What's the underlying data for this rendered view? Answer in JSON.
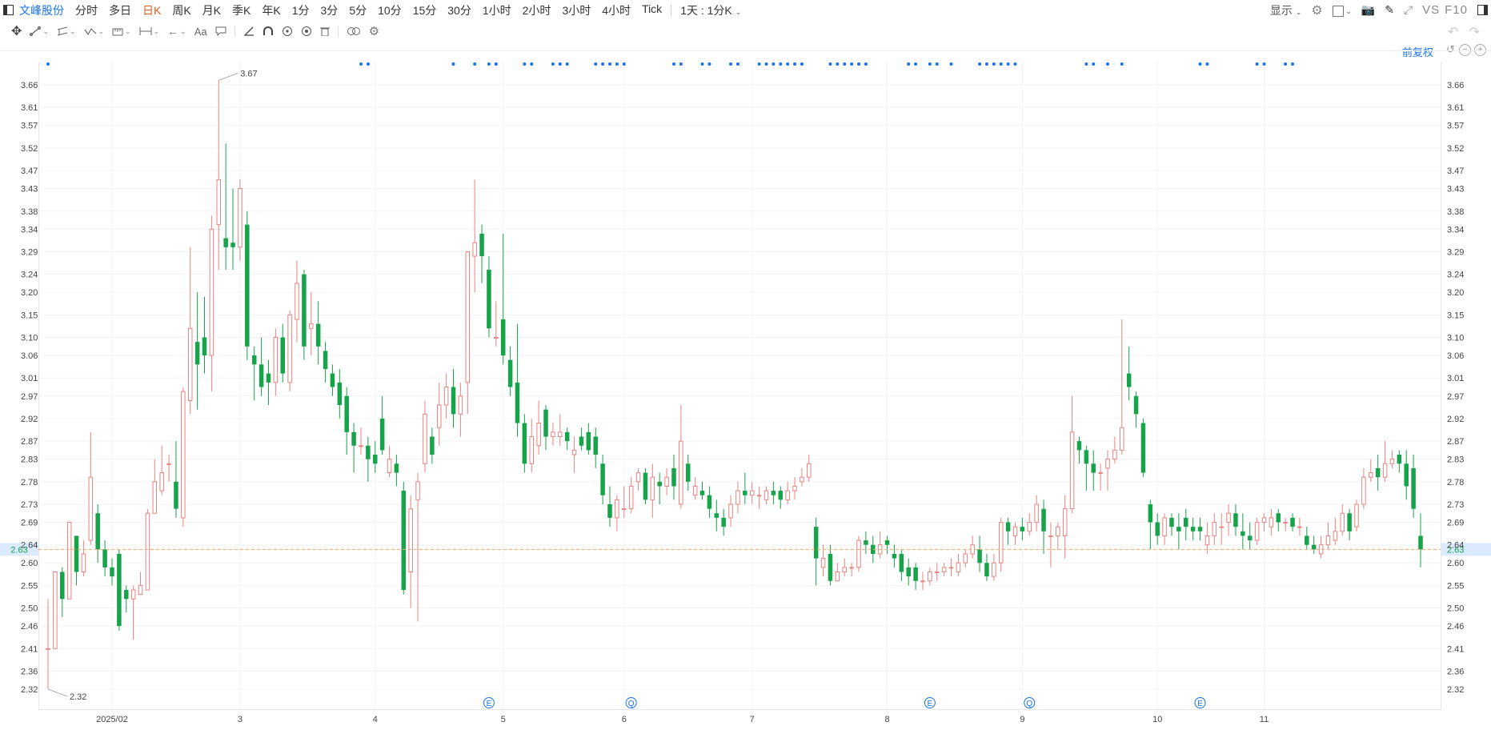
{
  "toolbar": {
    "stock_name": "文峰股份",
    "periods": [
      "分时",
      "多日",
      "日K",
      "周K",
      "月K",
      "季K",
      "年K",
      "1分",
      "3分",
      "5分",
      "10分",
      "15分",
      "30分",
      "1小时",
      "2小时",
      "3小时",
      "4小时",
      "Tick"
    ],
    "active_period": "日K",
    "interval_label": "1天 : 1分K",
    "display_label": "显示",
    "vs_label": "VS",
    "f10_label": "F10"
  },
  "adjust_label": "前复权",
  "icons": [
    "sidebar-toggle-icon",
    "settings-icon",
    "layout-icon",
    "camera-icon",
    "pencil-icon",
    "fullscreen-icon",
    "panel-icon",
    "move-icon",
    "line-tool-icon",
    "channel-icon",
    "pattern-icon",
    "measure-icon",
    "range-icon",
    "arrow-icon",
    "text-icon",
    "comment-icon",
    "angle-icon",
    "magnet-icon",
    "eye-icon",
    "target-icon",
    "trash-icon",
    "link-icon",
    "gear-icon",
    "undo-icon",
    "redo-icon"
  ],
  "colors": {
    "up": "#e8837f",
    "down": "#16a34a",
    "accent": "#1a73e8",
    "active": "#f05a22",
    "current_line": "#f5a86b"
  },
  "chart_data": {
    "type": "candlestick",
    "y_ticks": [
      "2.32",
      "2.36",
      "2.41",
      "2.46",
      "2.50",
      "2.55",
      "2.60",
      "2.64",
      "2.69",
      "2.73",
      "2.78",
      "2.83",
      "2.87",
      "2.92",
      "2.97",
      "3.01",
      "3.06",
      "3.10",
      "3.15",
      "3.20",
      "3.24",
      "3.29",
      "3.34",
      "3.38",
      "3.43",
      "3.47",
      "3.52",
      "3.57",
      "3.61",
      "3.66"
    ],
    "x_labels": [
      "2025/02",
      "3",
      "4",
      "5",
      "6",
      "7",
      "8",
      "9",
      "10",
      "11"
    ],
    "ylim": [
      2.28,
      3.69
    ],
    "current_price": "2.63",
    "max_label": "3.67",
    "min_label": "2.32",
    "event_markers": [
      {
        "label": "E",
        "index": 62
      },
      {
        "label": "Q",
        "index": 82
      },
      {
        "label": "E",
        "index": 124
      },
      {
        "label": "Q",
        "index": 138
      },
      {
        "label": "E",
        "index": 162
      }
    ],
    "dot_indices": [
      0,
      44,
      45,
      57,
      60,
      62,
      63,
      67,
      68,
      71,
      72,
      73,
      77,
      78,
      79,
      80,
      81,
      88,
      89,
      92,
      93,
      96,
      97,
      100,
      101,
      102,
      103,
      104,
      105,
      106,
      110,
      111,
      112,
      113,
      114,
      115,
      121,
      122,
      124,
      125,
      127,
      131,
      132,
      133,
      134,
      135,
      136,
      146,
      147,
      149,
      151,
      162,
      163,
      170,
      171,
      174,
      175
    ],
    "month_starts": {
      "2025/02": 9,
      "3": 27,
      "4": 46,
      "5": 64,
      "6": 81,
      "7": 99,
      "8": 118,
      "9": 137,
      "10": 156,
      "11": 171
    },
    "candles": [
      [
        2.41,
        2.41,
        2.32,
        2.52
      ],
      [
        2.41,
        2.58,
        2.41,
        2.58
      ],
      [
        2.58,
        2.52,
        2.48,
        2.59
      ],
      [
        2.52,
        2.69,
        2.52,
        2.69
      ],
      [
        2.66,
        2.58,
        2.55,
        2.66
      ],
      [
        2.58,
        2.62,
        2.57,
        2.65
      ],
      [
        2.65,
        2.79,
        2.64,
        2.89
      ],
      [
        2.71,
        2.63,
        2.6,
        2.73
      ],
      [
        2.63,
        2.59,
        2.57,
        2.65
      ],
      [
        2.59,
        2.57,
        2.55,
        2.61
      ],
      [
        2.62,
        2.46,
        2.45,
        2.63
      ],
      [
        2.54,
        2.52,
        2.49,
        2.55
      ],
      [
        2.52,
        2.54,
        2.43,
        2.55
      ],
      [
        2.53,
        2.55,
        2.53,
        2.58
      ],
      [
        2.54,
        2.71,
        2.54,
        2.72
      ],
      [
        2.71,
        2.78,
        2.71,
        2.83
      ],
      [
        2.76,
        2.8,
        2.75,
        2.86
      ],
      [
        2.82,
        2.82,
        2.78,
        2.84
      ],
      [
        2.78,
        2.72,
        2.7,
        2.87
      ],
      [
        2.7,
        2.98,
        2.68,
        2.99
      ],
      [
        2.96,
        3.12,
        2.93,
        3.3
      ],
      [
        3.09,
        3.04,
        2.94,
        3.2
      ],
      [
        3.1,
        3.06,
        3.02,
        3.19
      ],
      [
        3.06,
        3.34,
        2.98,
        3.37
      ],
      [
        3.35,
        3.45,
        3.25,
        3.67
      ],
      [
        3.32,
        3.3,
        3.25,
        3.53
      ],
      [
        3.31,
        3.3,
        3.25,
        3.43
      ],
      [
        3.3,
        3.43,
        3.27,
        3.45
      ],
      [
        3.35,
        3.08,
        3.05,
        3.38
      ],
      [
        3.06,
        3.04,
        2.96,
        3.08
      ],
      [
        3.04,
        2.99,
        2.97,
        3.1
      ],
      [
        3.02,
        3.0,
        2.95,
        3.05
      ],
      [
        3.0,
        3.1,
        2.97,
        3.12
      ],
      [
        3.1,
        3.02,
        3.0,
        3.13
      ],
      [
        3.0,
        3.15,
        2.98,
        3.16
      ],
      [
        3.14,
        3.22,
        3.09,
        3.27
      ],
      [
        3.24,
        3.08,
        3.05,
        3.25
      ],
      [
        3.12,
        3.13,
        3.06,
        3.2
      ],
      [
        3.13,
        3.08,
        3.04,
        3.18
      ],
      [
        3.07,
        3.03,
        3.0,
        3.09
      ],
      [
        3.02,
        2.99,
        2.97,
        3.04
      ],
      [
        3.0,
        2.95,
        2.92,
        3.03
      ],
      [
        2.97,
        2.89,
        2.84,
        2.99
      ],
      [
        2.89,
        2.86,
        2.8,
        2.91
      ],
      [
        2.86,
        2.86,
        2.84,
        2.9
      ],
      [
        2.86,
        2.83,
        2.78,
        2.88
      ],
      [
        2.84,
        2.82,
        2.8,
        2.87
      ],
      [
        2.92,
        2.85,
        2.84,
        2.97
      ],
      [
        2.8,
        2.83,
        2.79,
        2.86
      ],
      [
        2.82,
        2.8,
        2.77,
        2.84
      ],
      [
        2.76,
        2.54,
        2.53,
        2.78
      ],
      [
        2.58,
        2.72,
        2.5,
        2.75
      ],
      [
        2.74,
        2.78,
        2.47,
        2.8
      ],
      [
        2.82,
        2.93,
        2.8,
        2.96
      ],
      [
        2.88,
        2.84,
        2.82,
        2.9
      ],
      [
        2.9,
        2.95,
        2.86,
        3.0
      ],
      [
        2.95,
        2.99,
        2.92,
        3.02
      ],
      [
        2.99,
        2.93,
        2.9,
        3.03
      ],
      [
        2.93,
        2.97,
        2.88,
        3.0
      ],
      [
        3.0,
        3.29,
        2.93,
        3.29
      ],
      [
        3.28,
        3.31,
        3.2,
        3.45
      ],
      [
        3.33,
        3.28,
        3.22,
        3.35
      ],
      [
        3.25,
        3.12,
        3.1,
        3.28
      ],
      [
        3.1,
        3.1,
        3.08,
        3.18
      ],
      [
        3.14,
        3.06,
        3.04,
        3.33
      ],
      [
        3.05,
        2.99,
        2.97,
        3.08
      ],
      [
        3.0,
        2.91,
        2.88,
        3.13
      ],
      [
        2.91,
        2.82,
        2.8,
        2.93
      ],
      [
        2.82,
        2.88,
        2.8,
        2.92
      ],
      [
        2.86,
        2.91,
        2.84,
        2.96
      ],
      [
        2.94,
        2.88,
        2.85,
        2.95
      ],
      [
        2.88,
        2.89,
        2.86,
        2.91
      ],
      [
        2.88,
        2.89,
        2.86,
        2.93
      ],
      [
        2.89,
        2.87,
        2.85,
        2.9
      ],
      [
        2.84,
        2.85,
        2.8,
        2.88
      ],
      [
        2.88,
        2.86,
        2.85,
        2.9
      ],
      [
        2.89,
        2.85,
        2.84,
        2.91
      ],
      [
        2.88,
        2.84,
        2.81,
        2.9
      ],
      [
        2.82,
        2.75,
        2.73,
        2.84
      ],
      [
        2.73,
        2.7,
        2.68,
        2.77
      ],
      [
        2.7,
        2.74,
        2.67,
        2.75
      ],
      [
        2.72,
        2.72,
        2.7,
        2.77
      ],
      [
        2.72,
        2.77,
        2.71,
        2.79
      ],
      [
        2.78,
        2.8,
        2.76,
        2.81
      ],
      [
        2.8,
        2.74,
        2.73,
        2.81
      ],
      [
        2.74,
        2.79,
        2.7,
        2.82
      ],
      [
        2.78,
        2.77,
        2.73,
        2.8
      ],
      [
        2.77,
        2.79,
        2.75,
        2.81
      ],
      [
        2.81,
        2.77,
        2.74,
        2.84
      ],
      [
        2.73,
        2.87,
        2.72,
        2.95
      ],
      [
        2.82,
        2.78,
        2.76,
        2.84
      ],
      [
        2.75,
        2.77,
        2.74,
        2.79
      ],
      [
        2.76,
        2.75,
        2.74,
        2.78
      ],
      [
        2.75,
        2.72,
        2.7,
        2.77
      ],
      [
        2.71,
        2.7,
        2.67,
        2.74
      ],
      [
        2.7,
        2.68,
        2.66,
        2.72
      ],
      [
        2.7,
        2.73,
        2.68,
        2.75
      ],
      [
        2.73,
        2.76,
        2.71,
        2.78
      ],
      [
        2.76,
        2.75,
        2.73,
        2.8
      ],
      [
        2.75,
        2.76,
        2.73,
        2.78
      ],
      [
        2.75,
        2.75,
        2.72,
        2.77
      ],
      [
        2.74,
        2.76,
        2.73,
        2.77
      ],
      [
        2.76,
        2.75,
        2.73,
        2.78
      ],
      [
        2.76,
        2.74,
        2.72,
        2.77
      ],
      [
        2.74,
        2.76,
        2.73,
        2.78
      ],
      [
        2.76,
        2.77,
        2.74,
        2.79
      ],
      [
        2.78,
        2.79,
        2.77,
        2.81
      ],
      [
        2.79,
        2.82,
        2.78,
        2.84
      ],
      [
        2.68,
        2.61,
        2.55,
        2.7
      ],
      [
        2.59,
        2.61,
        2.57,
        2.64
      ],
      [
        2.62,
        2.56,
        2.55,
        2.64
      ],
      [
        2.56,
        2.58,
        2.56,
        2.6
      ],
      [
        2.58,
        2.59,
        2.57,
        2.61
      ],
      [
        2.59,
        2.59,
        2.57,
        2.6
      ],
      [
        2.59,
        2.65,
        2.58,
        2.66
      ],
      [
        2.65,
        2.64,
        2.62,
        2.67
      ],
      [
        2.64,
        2.62,
        2.6,
        2.66
      ],
      [
        2.62,
        2.64,
        2.61,
        2.67
      ],
      [
        2.65,
        2.64,
        2.62,
        2.66
      ],
      [
        2.62,
        2.61,
        2.59,
        2.64
      ],
      [
        2.62,
        2.58,
        2.56,
        2.63
      ],
      [
        2.59,
        2.57,
        2.55,
        2.61
      ],
      [
        2.59,
        2.56,
        2.54,
        2.6
      ],
      [
        2.56,
        2.56,
        2.54,
        2.58
      ],
      [
        2.56,
        2.58,
        2.55,
        2.59
      ],
      [
        2.58,
        2.58,
        2.56,
        2.6
      ],
      [
        2.58,
        2.59,
        2.57,
        2.6
      ],
      [
        2.59,
        2.59,
        2.57,
        2.61
      ],
      [
        2.58,
        2.6,
        2.57,
        2.62
      ],
      [
        2.6,
        2.62,
        2.59,
        2.63
      ],
      [
        2.62,
        2.64,
        2.61,
        2.66
      ],
      [
        2.63,
        2.6,
        2.58,
        2.66
      ],
      [
        2.6,
        2.57,
        2.56,
        2.62
      ],
      [
        2.57,
        2.6,
        2.56,
        2.62
      ],
      [
        2.6,
        2.69,
        2.58,
        2.7
      ],
      [
        2.69,
        2.67,
        2.64,
        2.7
      ],
      [
        2.66,
        2.68,
        2.64,
        2.69
      ],
      [
        2.68,
        2.67,
        2.65,
        2.7
      ],
      [
        2.67,
        2.69,
        2.66,
        2.71
      ],
      [
        2.69,
        2.73,
        2.67,
        2.75
      ],
      [
        2.72,
        2.67,
        2.62,
        2.74
      ],
      [
        2.66,
        2.66,
        2.59,
        2.69
      ],
      [
        2.66,
        2.68,
        2.63,
        2.69
      ],
      [
        2.66,
        2.72,
        2.61,
        2.75
      ],
      [
        2.72,
        2.89,
        2.71,
        2.97
      ],
      [
        2.87,
        2.85,
        2.82,
        2.88
      ],
      [
        2.85,
        2.82,
        2.76,
        2.86
      ],
      [
        2.82,
        2.8,
        2.76,
        2.85
      ],
      [
        2.8,
        2.8,
        2.76,
        2.82
      ],
      [
        2.81,
        2.83,
        2.76,
        2.85
      ],
      [
        2.83,
        2.85,
        2.82,
        2.88
      ],
      [
        2.85,
        2.9,
        2.84,
        3.14
      ],
      [
        3.02,
        2.99,
        2.96,
        3.08
      ],
      [
        2.97,
        2.93,
        2.9,
        2.98
      ],
      [
        2.91,
        2.8,
        2.79,
        2.92
      ],
      [
        2.73,
        2.69,
        2.63,
        2.74
      ],
      [
        2.69,
        2.66,
        2.64,
        2.71
      ],
      [
        2.66,
        2.7,
        2.64,
        2.71
      ],
      [
        2.7,
        2.68,
        2.66,
        2.71
      ],
      [
        2.68,
        2.67,
        2.63,
        2.71
      ],
      [
        2.7,
        2.68,
        2.65,
        2.72
      ],
      [
        2.68,
        2.67,
        2.65,
        2.7
      ],
      [
        2.68,
        2.67,
        2.65,
        2.7
      ],
      [
        2.64,
        2.66,
        2.62,
        2.69
      ],
      [
        2.66,
        2.69,
        2.64,
        2.71
      ],
      [
        2.68,
        2.68,
        2.64,
        2.71
      ],
      [
        2.69,
        2.71,
        2.66,
        2.73
      ],
      [
        2.71,
        2.68,
        2.66,
        2.73
      ],
      [
        2.67,
        2.66,
        2.63,
        2.71
      ],
      [
        2.66,
        2.65,
        2.63,
        2.69
      ],
      [
        2.65,
        2.69,
        2.64,
        2.7
      ],
      [
        2.69,
        2.7,
        2.67,
        2.71
      ],
      [
        2.68,
        2.7,
        2.66,
        2.72
      ],
      [
        2.71,
        2.69,
        2.67,
        2.72
      ],
      [
        2.69,
        2.69,
        2.67,
        2.7
      ],
      [
        2.7,
        2.68,
        2.67,
        2.71
      ],
      [
        2.68,
        2.68,
        2.66,
        2.7
      ],
      [
        2.66,
        2.64,
        2.63,
        2.68
      ],
      [
        2.64,
        2.63,
        2.62,
        2.66
      ],
      [
        2.62,
        2.64,
        2.61,
        2.66
      ],
      [
        2.64,
        2.66,
        2.63,
        2.69
      ],
      [
        2.65,
        2.67,
        2.64,
        2.7
      ],
      [
        2.67,
        2.71,
        2.66,
        2.73
      ],
      [
        2.71,
        2.67,
        2.65,
        2.72
      ],
      [
        2.68,
        2.73,
        2.67,
        2.74
      ],
      [
        2.73,
        2.79,
        2.72,
        2.81
      ],
      [
        2.79,
        2.8,
        2.78,
        2.83
      ],
      [
        2.81,
        2.79,
        2.76,
        2.84
      ],
      [
        2.79,
        2.82,
        2.78,
        2.87
      ],
      [
        2.82,
        2.83,
        2.81,
        2.85
      ],
      [
        2.84,
        2.82,
        2.8,
        2.85
      ],
      [
        2.82,
        2.77,
        2.74,
        2.85
      ],
      [
        2.81,
        2.72,
        2.7,
        2.84
      ],
      [
        2.66,
        2.63,
        2.59,
        2.71
      ]
    ]
  }
}
